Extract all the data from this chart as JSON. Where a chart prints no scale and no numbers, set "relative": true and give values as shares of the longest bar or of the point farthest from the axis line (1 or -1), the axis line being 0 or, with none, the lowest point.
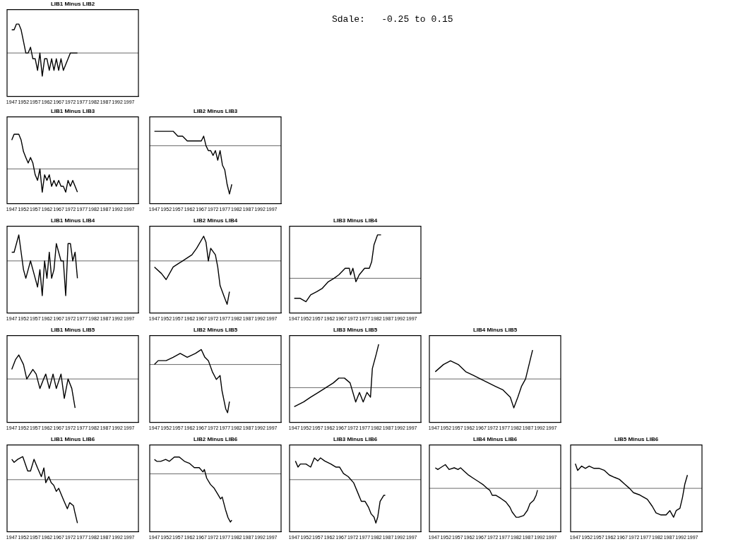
{
  "chart_data": [
    {
      "type": "line",
      "title": "LIB1 Minus LIB2",
      "relative": true,
      "x": [
        1947,
        1948,
        1949,
        1950,
        1951,
        1952,
        1953,
        1954,
        1955,
        1956,
        1957,
        1958,
        1959,
        1960,
        1961,
        1962,
        1963,
        1964,
        1965,
        1966,
        1967,
        1968,
        1969,
        1970,
        1971,
        1972,
        1973,
        1974,
        1975
      ],
      "values": [
        0.8,
        0.8,
        1,
        1,
        0.8,
        0.4,
        0,
        0,
        0.2,
        -0.2,
        -0.2,
        -0.6,
        0,
        -0.8,
        -0.2,
        -0.2,
        -0.6,
        -0.2,
        -0.6,
        -0.2,
        -0.6,
        -0.2,
        -0.6,
        -0.4,
        -0.2,
        0,
        0,
        0,
        0
      ],
      "color": "#000000",
      "xlim": [
        1945,
        2001
      ],
      "xticks": [
        1947,
        1952,
        1957,
        1962,
        1967,
        1972,
        1977,
        1982,
        1987,
        1992,
        1997
      ],
      "tick_labels": "x"
    },
    {
      "type": "other",
      "annotations": [
        "Sdale:   -0.25 to 0.15"
      ]
    },
    {
      "type": "line",
      "title": "LIB1 Minus LIB3",
      "relative": true,
      "x": [
        1947,
        1948,
        1949,
        1950,
        1951,
        1952,
        1953,
        1954,
        1955,
        1956,
        1957,
        1958,
        1959,
        1960,
        1961,
        1962,
        1963,
        1964,
        1965,
        1966,
        1967,
        1968,
        1969,
        1970,
        1971,
        1972,
        1973,
        1974,
        1975
      ],
      "values": [
        0.83,
        1,
        1,
        1,
        0.83,
        0.5,
        0.33,
        0.17,
        0.33,
        0.17,
        -0.17,
        -0.33,
        0,
        -0.67,
        -0.17,
        -0.33,
        -0.17,
        -0.5,
        -0.33,
        -0.5,
        -0.33,
        -0.5,
        -0.5,
        -0.67,
        -0.33,
        -0.5,
        -0.33,
        -0.5,
        -0.67
      ],
      "color": "#000000",
      "xlim": [
        1945,
        2001
      ],
      "xticks": [
        1947,
        1952,
        1957,
        1962,
        1967,
        1972,
        1977,
        1982,
        1987,
        1992,
        1997
      ],
      "tick_labels": "x"
    },
    {
      "type": "line",
      "title": "LIB2 Minus LIB3",
      "relative": true,
      "x": [
        1947,
        1949,
        1951,
        1953,
        1955,
        1957,
        1959,
        1961,
        1963,
        1965,
        1966,
        1967,
        1968,
        1969,
        1970,
        1971,
        1972,
        1973,
        1974,
        1975,
        1976,
        1977,
        1978,
        1979,
        1980
      ],
      "values": [
        0.3,
        0.3,
        0.3,
        0.3,
        0.3,
        0.2,
        0.2,
        0.1,
        0.1,
        0.1,
        0.1,
        0.1,
        0.2,
        0,
        -0.1,
        -0.1,
        -0.2,
        -0.1,
        -0.3,
        -0.1,
        -0.4,
        -0.5,
        -0.8,
        -1,
        -0.8
      ],
      "color": "#000000",
      "xlim": [
        1945,
        2001
      ],
      "xticks": [
        1947,
        1952,
        1957,
        1962,
        1967,
        1972,
        1977,
        1982,
        1987,
        1992,
        1997
      ],
      "tick_labels": "x"
    },
    {
      "type": "line",
      "title": "LIB1 Minus LIB4",
      "relative": true,
      "x": [
        1947,
        1948,
        1949,
        1950,
        1951,
        1952,
        1953,
        1954,
        1955,
        1956,
        1957,
        1958,
        1959,
        1960,
        1961,
        1962,
        1963,
        1964,
        1965,
        1966,
        1967,
        1968,
        1969,
        1970,
        1971,
        1972,
        1973,
        1974,
        1975
      ],
      "values": [
        0.25,
        0.25,
        0.5,
        0.75,
        0.25,
        -0.25,
        -0.5,
        -0.25,
        0,
        -0.25,
        -0.5,
        -0.75,
        -0.25,
        -1,
        0,
        -0.5,
        0.25,
        -0.5,
        -0.25,
        0.5,
        0.25,
        0,
        0,
        -1,
        0.5,
        0.5,
        0,
        0.25,
        -0.5
      ],
      "color": "#000000",
      "xlim": [
        1945,
        2001
      ],
      "xticks": [
        1947,
        1952,
        1957,
        1962,
        1967,
        1972,
        1977,
        1982,
        1987,
        1992,
        1997
      ],
      "tick_labels": "x"
    },
    {
      "type": "line",
      "title": "LIB2 Minus LIB4",
      "relative": true,
      "x": [
        1947,
        1950,
        1952,
        1955,
        1959,
        1963,
        1965,
        1968,
        1969,
        1970,
        1971,
        1973,
        1974,
        1975,
        1977,
        1978,
        1979
      ],
      "values": [
        -0.14,
        -0.29,
        -0.43,
        -0.14,
        0,
        0.14,
        0.29,
        0.57,
        0.43,
        0,
        0.29,
        0.14,
        -0.14,
        -0.57,
        -0.86,
        -1,
        -0.71
      ],
      "color": "#000000",
      "xlim": [
        1945,
        2001
      ],
      "xticks": [
        1947,
        1952,
        1957,
        1962,
        1967,
        1972,
        1977,
        1982,
        1987,
        1992,
        1997
      ],
      "tick_labels": "x"
    },
    {
      "type": "line",
      "title": "LIB3 Minus LIB4",
      "relative": true,
      "x": [
        1947,
        1949.4,
        1952,
        1954,
        1956.6,
        1959,
        1961.5,
        1964,
        1966,
        1968.7,
        1970.5,
        1971,
        1972,
        1973.3,
        1974.7,
        1977,
        1979,
        1980,
        1981,
        1982.5,
        1984
      ],
      "values": [
        -0.46,
        -0.46,
        -0.54,
        -0.38,
        -0.31,
        -0.23,
        -0.08,
        0,
        0.08,
        0.23,
        0.23,
        0.08,
        0.23,
        -0.08,
        0.08,
        0.23,
        0.23,
        0.38,
        0.77,
        1,
        1
      ],
      "color": "#000000",
      "xlim": [
        1945,
        2001
      ],
      "xticks": [
        1947,
        1952,
        1957,
        1962,
        1967,
        1972,
        1977,
        1982,
        1987,
        1992,
        1997
      ],
      "tick_labels": "x"
    },
    {
      "type": "line",
      "title": "LIB1 Minus LIB5",
      "relative": true,
      "x": [
        1947,
        1948.6,
        1950,
        1952,
        1953.4,
        1956,
        1957.4,
        1959,
        1960.6,
        1961.5,
        1963,
        1964.6,
        1966,
        1968,
        1969.4,
        1971,
        1972.6,
        1974
      ],
      "values": [
        0.33,
        0.67,
        0.83,
        0.5,
        0,
        0.33,
        0.17,
        -0.33,
        0,
        0.17,
        -0.33,
        0.17,
        -0.33,
        0.17,
        -0.67,
        0,
        -0.33,
        -1
      ],
      "color": "#000000",
      "xlim": [
        1945,
        2001
      ],
      "xticks": [
        1947,
        1952,
        1957,
        1962,
        1967,
        1972,
        1977,
        1982,
        1987,
        1992,
        1997
      ],
      "tick_labels": "x"
    },
    {
      "type": "line",
      "title": "LIB2 Minus LIB5",
      "relative": true,
      "x": [
        1947,
        1948.6,
        1952,
        1955,
        1958,
        1961,
        1964.5,
        1967,
        1968.5,
        1970,
        1971.7,
        1973.4,
        1975,
        1975.8,
        1977.4,
        1978.2,
        1979
      ],
      "values": [
        0,
        0.08,
        0.08,
        0.15,
        0.23,
        0.15,
        0.23,
        0.31,
        0.15,
        0.08,
        -0.15,
        -0.31,
        -0.23,
        -0.54,
        -0.92,
        -1,
        -0.77
      ],
      "color": "#000000",
      "xlim": [
        1945,
        2001
      ],
      "xticks": [
        1947,
        1952,
        1957,
        1962,
        1967,
        1972,
        1977,
        1982,
        1987,
        1992,
        1997
      ],
      "tick_labels": "x"
    },
    {
      "type": "line",
      "title": "LIB3 Minus LIB5",
      "relative": true,
      "x": [
        1947,
        1951,
        1954,
        1957.3,
        1960.5,
        1963.7,
        1966,
        1968.4,
        1970.8,
        1973.2,
        1974.8,
        1976.4,
        1978,
        1979.5,
        1980.3,
        1982,
        1983
      ],
      "values": [
        -0.44,
        -0.33,
        -0.22,
        -0.11,
        0,
        0.11,
        0.22,
        0.22,
        0.11,
        -0.33,
        -0.11,
        -0.33,
        -0.11,
        -0.22,
        0.44,
        0.78,
        1
      ],
      "color": "#000000",
      "xlim": [
        1945,
        2001
      ],
      "xticks": [
        1947,
        1952,
        1957,
        1962,
        1967,
        1972,
        1977,
        1982,
        1987,
        1992,
        1997
      ],
      "tick_labels": "x"
    },
    {
      "type": "line",
      "title": "LIB4 Minus LIB5",
      "relative": true,
      "x": [
        1947.5,
        1951,
        1954,
        1957.3,
        1960.5,
        1963.7,
        1966.8,
        1970,
        1973,
        1976.4,
        1979.5,
        1981,
        1982.7,
        1984.3,
        1986,
        1987.5,
        1989
      ],
      "values": [
        0.25,
        0.5,
        0.63,
        0.5,
        0.25,
        0.13,
        0,
        -0.13,
        -0.25,
        -0.38,
        -0.63,
        -1,
        -0.63,
        -0.25,
        0,
        0.5,
        1
      ],
      "color": "#000000",
      "xlim": [
        1945,
        2001
      ],
      "xticks": [
        1947,
        1952,
        1957,
        1962,
        1967,
        1972,
        1977,
        1982,
        1987,
        1992,
        1997
      ],
      "tick_labels": "x"
    },
    {
      "type": "line",
      "title": "LIB1 Minus LIB6",
      "relative": true,
      "x": [
        1947,
        1948,
        1949.6,
        1951.7,
        1953.8,
        1955,
        1956.5,
        1958,
        1959.6,
        1960.7,
        1961.5,
        1962.8,
        1963.8,
        1964.9,
        1966,
        1967,
        1969.1,
        1970.7,
        1971.7,
        1973.3,
        1973.8,
        1975
      ],
      "values": [
        0.47,
        0.4,
        0.47,
        0.53,
        0.2,
        0.2,
        0.47,
        0.27,
        0.07,
        0.27,
        -0.07,
        0.07,
        -0.07,
        -0.13,
        -0.27,
        -0.2,
        -0.47,
        -0.67,
        -0.53,
        -0.6,
        -0.73,
        -1
      ],
      "color": "#000000",
      "xlim": [
        1945,
        2001
      ],
      "xticks": [
        1947,
        1952,
        1957,
        1962,
        1967,
        1972,
        1977,
        1982,
        1987,
        1992,
        1997
      ],
      "tick_labels": "x"
    },
    {
      "type": "line",
      "title": "LIB2 Minus LIB6",
      "relative": true,
      "x": [
        1947,
        1948,
        1949.7,
        1951.8,
        1953.4,
        1955.5,
        1957.6,
        1959.8,
        1961.9,
        1964,
        1966.1,
        1967.7,
        1968.3,
        1969.3,
        1970.9,
        1972.5,
        1974.1,
        1975.2,
        1975.9,
        1977.3,
        1978.4,
        1979.4,
        1980
      ],
      "values": [
        0.3,
        0.26,
        0.26,
        0.3,
        0.26,
        0.35,
        0.35,
        0.26,
        0.22,
        0.13,
        0.13,
        0.04,
        0.09,
        -0.09,
        -0.22,
        -0.3,
        -0.43,
        -0.52,
        -0.48,
        -0.74,
        -0.91,
        -1,
        -0.96
      ],
      "color": "#000000",
      "xlim": [
        1945,
        2001
      ],
      "xticks": [
        1947,
        1952,
        1957,
        1962,
        1967,
        1972,
        1977,
        1982,
        1987,
        1992,
        1997
      ],
      "tick_labels": "x"
    },
    {
      "type": "line",
      "title": "LIB3 Minus LIB6",
      "relative": true,
      "x": [
        1947.5,
        1948.6,
        1949.6,
        1952,
        1954,
        1955.6,
        1957,
        1958.2,
        1960,
        1962.6,
        1964.7,
        1966.3,
        1968,
        1970,
        1972.3,
        1974,
        1975.6,
        1977.2,
        1978.7,
        1979.8,
        1981,
        1981.8,
        1982.6,
        1983.6,
        1985.2,
        1985.8
      ],
      "values": [
        0.43,
        0.29,
        0.36,
        0.36,
        0.29,
        0.5,
        0.43,
        0.5,
        0.43,
        0.36,
        0.29,
        0.29,
        0.14,
        0.07,
        -0.07,
        -0.29,
        -0.5,
        -0.5,
        -0.64,
        -0.79,
        -0.86,
        -1,
        -0.86,
        -0.5,
        -0.36,
        -0.36
      ],
      "color": "#000000",
      "xlim": [
        1945,
        2001
      ],
      "xticks": [
        1947,
        1952,
        1957,
        1962,
        1967,
        1972,
        1977,
        1982,
        1987,
        1992,
        1997
      ],
      "tick_labels": "x"
    },
    {
      "type": "line",
      "title": "LIB4 Minus LIB6",
      "relative": true,
      "x": [
        1947.5,
        1948.6,
        1949.7,
        1951.8,
        1953.4,
        1955.6,
        1957.2,
        1958.3,
        1959.9,
        1961.5,
        1963.7,
        1965.8,
        1968,
        1969.6,
        1970.7,
        1971.8,
        1973.3,
        1975.5,
        1977.6,
        1979.3,
        1980.3,
        1982,
        1983,
        1985.2,
        1986.8,
        1987.9,
        1989.5,
        1990.5,
        1991.1
      ],
      "values": [
        0.71,
        0.65,
        0.71,
        0.82,
        0.65,
        0.71,
        0.65,
        0.71,
        0.59,
        0.47,
        0.35,
        0.24,
        0.12,
        0,
        -0.06,
        -0.24,
        -0.24,
        -0.35,
        -0.47,
        -0.65,
        -0.82,
        -1,
        -1,
        -0.94,
        -0.76,
        -0.53,
        -0.41,
        -0.24,
        -0.06
      ],
      "color": "#000000",
      "xlim": [
        1945,
        2001
      ],
      "xticks": [
        1947,
        1952,
        1957,
        1962,
        1967,
        1972,
        1977,
        1982,
        1987,
        1992,
        1997
      ],
      "tick_labels": "x"
    },
    {
      "type": "line",
      "title": "LIB5 Minus LIB6",
      "relative": true,
      "x": [
        1947,
        1948,
        1949.7,
        1951.3,
        1952.9,
        1955,
        1957.2,
        1959.4,
        1961.5,
        1963.7,
        1965.8,
        1968,
        1970.1,
        1971.8,
        1974.5,
        1977.7,
        1979.8,
        1981.4,
        1983.5,
        1985.7,
        1987.3,
        1988.9,
        1990,
        1991.6,
        1992.7,
        1993.7,
        1994.8
      ],
      "values": [
        0.85,
        0.62,
        0.77,
        0.69,
        0.77,
        0.69,
        0.69,
        0.62,
        0.46,
        0.38,
        0.31,
        0.15,
        0,
        -0.15,
        -0.23,
        -0.38,
        -0.62,
        -0.85,
        -0.92,
        -0.92,
        -0.77,
        -1,
        -0.77,
        -0.69,
        -0.31,
        0.15,
        0.46
      ],
      "color": "#000000",
      "xlim": [
        1945,
        2001
      ],
      "xticks": [
        1947,
        1952,
        1957,
        1962,
        1967,
        1972,
        1977,
        1982,
        1987,
        1992,
        1997
      ],
      "tick_labels": "x"
    }
  ]
}
